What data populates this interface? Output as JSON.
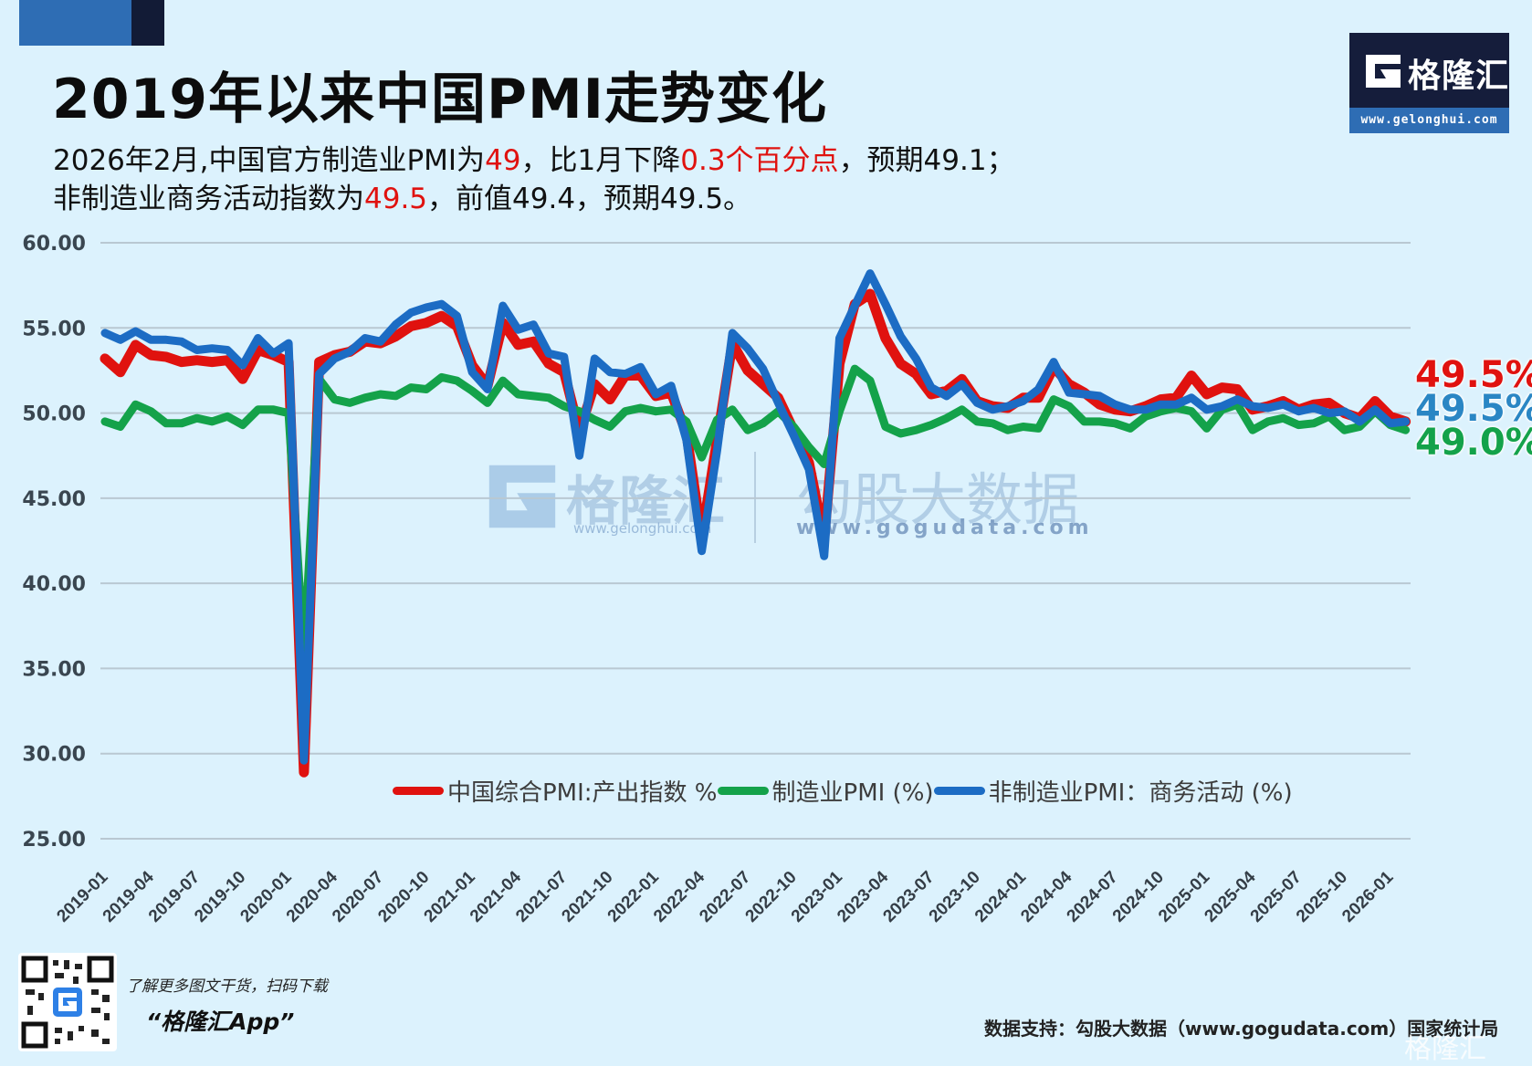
{
  "header": {
    "title": "2019年以来中国PMI走势变化",
    "subtitle_line1": {
      "p1": "2026年2月,中国官方制造业PMI为",
      "v1": "49",
      "p2": "，比1月下降",
      "v2": "0.3个百分点",
      "p3": "，预期49.1；"
    },
    "subtitle_line2": {
      "p1": "非制造业商务活动指数为",
      "v1": "49.5",
      "p2": "，前值49.4，预期49.5。"
    }
  },
  "logo": {
    "brand": "格隆汇",
    "url": "www.gelonghui.com"
  },
  "watermark": {
    "brand1": "格隆汇",
    "url1": "www.gelonghui.com",
    "brand2": "勾股大数据",
    "url2": "www.gogudata.com"
  },
  "end_labels": [
    {
      "text": "49.5%",
      "color": "#e0120f"
    },
    {
      "text": "49.5%",
      "color": "#2a86c4"
    },
    {
      "text": "49.0%",
      "color": "#14a24a"
    }
  ],
  "footer": {
    "qr_note": "了解更多图文干货，扫码下载",
    "app_name": "“格隆汇App”",
    "source": "数据支持：勾股大数据（www.gogudata.com）国家统计局",
    "corner_brand": "格隆汇"
  },
  "chart_data": {
    "type": "line",
    "title": "2019年以来中国PMI走势变化",
    "xlabel": "",
    "ylabel": "",
    "ylim": [
      25,
      60
    ],
    "yticks": [
      "25.00",
      "30.00",
      "35.00",
      "40.00",
      "45.00",
      "50.00",
      "55.00",
      "60.00"
    ],
    "grid": true,
    "legend_position": "bottom-inside",
    "x_tick_labels": [
      "2019-01",
      "2019-04",
      "2019-07",
      "2019-10",
      "2020-01",
      "2020-04",
      "2020-07",
      "2020-10",
      "2021-01",
      "2021-04",
      "2021-07",
      "2021-10",
      "2022-01",
      "2022-04",
      "2022-07",
      "2022-10",
      "2023-01",
      "2023-04",
      "2023-07",
      "2023-10",
      "2024-01",
      "2024-04",
      "2024-07",
      "2024-10",
      "2025-01",
      "2025-04",
      "2025-07",
      "2025-10",
      "2026-01"
    ],
    "x_start": "2019-01",
    "x_end": "2026-02",
    "series": [
      {
        "name": "中国综合PMI:产出指数 %",
        "color": "#e0120f",
        "values": [
          53.2,
          52.4,
          54.0,
          53.4,
          53.3,
          53.0,
          53.1,
          53.0,
          53.1,
          52.0,
          53.7,
          53.4,
          53.0,
          28.9,
          53.0,
          53.4,
          53.6,
          54.2,
          54.1,
          54.5,
          55.1,
          55.3,
          55.7,
          55.1,
          52.8,
          51.6,
          55.3,
          54.0,
          54.2,
          52.9,
          52.4,
          48.9,
          51.7,
          50.8,
          52.2,
          52.2,
          51.0,
          51.2,
          48.8,
          42.7,
          48.4,
          54.1,
          52.5,
          51.7,
          50.9,
          49.0,
          47.1,
          42.6,
          52.9,
          56.4,
          57.0,
          54.4,
          52.9,
          52.3,
          51.1,
          51.3,
          52.0,
          50.7,
          50.4,
          50.3,
          50.9,
          50.9,
          52.7,
          51.7,
          51.2,
          50.5,
          50.2,
          50.1,
          50.4,
          50.8,
          50.9,
          52.2,
          51.1,
          51.5,
          51.4,
          50.2,
          50.4,
          50.7,
          50.2,
          50.5,
          50.6,
          50.0,
          49.7,
          50.7,
          49.8,
          49.5
        ]
      },
      {
        "name": "制造业PMI (%)",
        "color": "#14a24a",
        "values": [
          49.5,
          49.2,
          50.5,
          50.1,
          49.4,
          49.4,
          49.7,
          49.5,
          49.8,
          49.3,
          50.2,
          50.2,
          50.0,
          35.7,
          52.0,
          50.8,
          50.6,
          50.9,
          51.1,
          51.0,
          51.5,
          51.4,
          52.1,
          51.9,
          51.3,
          50.6,
          51.9,
          51.1,
          51.0,
          50.9,
          50.4,
          50.1,
          49.6,
          49.2,
          50.1,
          50.3,
          50.1,
          50.2,
          49.5,
          47.4,
          49.6,
          50.2,
          49.0,
          49.4,
          50.1,
          49.2,
          48.0,
          47.0,
          50.1,
          52.6,
          51.9,
          49.2,
          48.8,
          49.0,
          49.3,
          49.7,
          50.2,
          49.5,
          49.4,
          49.0,
          49.2,
          49.1,
          50.8,
          50.4,
          49.5,
          49.5,
          49.4,
          49.1,
          49.8,
          50.1,
          50.3,
          50.1,
          49.1,
          50.2,
          50.5,
          49.0,
          49.5,
          49.7,
          49.3,
          49.4,
          49.8,
          49.0,
          49.2,
          50.1,
          49.3,
          49.0
        ]
      },
      {
        "name": "非制造业PMI：商务活动 (%)",
        "color": "#1c6cc4",
        "values": [
          54.7,
          54.3,
          54.8,
          54.3,
          54.3,
          54.2,
          53.7,
          53.8,
          53.7,
          52.8,
          54.4,
          53.5,
          54.1,
          29.6,
          52.3,
          53.2,
          53.6,
          54.4,
          54.2,
          55.2,
          55.9,
          56.2,
          56.4,
          55.7,
          52.4,
          51.4,
          56.3,
          54.9,
          55.2,
          53.5,
          53.3,
          47.5,
          53.2,
          52.4,
          52.3,
          52.7,
          51.1,
          51.6,
          48.4,
          41.9,
          47.8,
          54.7,
          53.8,
          52.6,
          50.6,
          48.7,
          46.7,
          41.6,
          54.4,
          56.3,
          58.2,
          56.4,
          54.5,
          53.2,
          51.5,
          51.0,
          51.7,
          50.6,
          50.2,
          50.4,
          50.7,
          51.4,
          53.0,
          51.2,
          51.1,
          51.0,
          50.5,
          50.2,
          50.2,
          50.5,
          50.5,
          50.9,
          50.2,
          50.4,
          50.8,
          50.4,
          50.3,
          50.5,
          50.1,
          50.3,
          50.0,
          50.1,
          49.5,
          50.2,
          49.4,
          49.5
        ]
      }
    ]
  }
}
